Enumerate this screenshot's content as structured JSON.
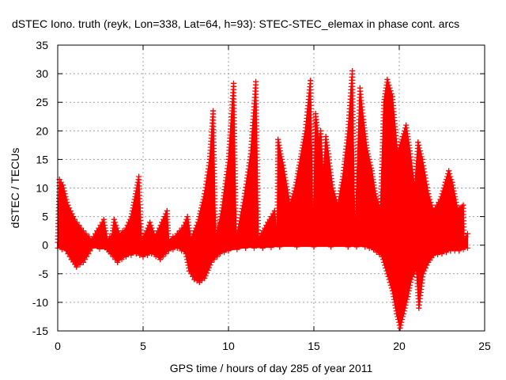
{
  "chart_data": {
    "type": "scatter",
    "title": "dSTEC Iono. truth (reyk, Lon=338, Lat=64, h=93): STEC-STEC_elemax in phase cont. arcs",
    "xlabel": "GPS time / hours of day 285 of year 2011",
    "ylabel": "dSTEC  / TECUs",
    "xlim": [
      0,
      25
    ],
    "ylim": [
      -15,
      35
    ],
    "xticks": [
      "0",
      "5",
      "10",
      "15",
      "20",
      "25"
    ],
    "yticks": [
      "-15",
      "-10",
      "-5",
      "0",
      "5",
      "10",
      "15",
      "20",
      "25",
      "30",
      "35"
    ],
    "grid": true,
    "marker": "+",
    "color": "#ff0000",
    "series": [
      {
        "upper_envelope": [
          [
            0,
            0.5
          ],
          [
            0.1,
            11.5
          ],
          [
            0.3,
            10.5
          ],
          [
            0.6,
            7
          ],
          [
            1.0,
            4.5
          ],
          [
            1.5,
            2.5
          ],
          [
            2.0,
            1
          ],
          [
            2.3,
            2.5
          ],
          [
            2.7,
            4.5
          ],
          [
            2.9,
            1
          ],
          [
            3.2,
            2
          ],
          [
            3.3,
            4.5
          ],
          [
            3.6,
            2
          ],
          [
            4.0,
            3
          ],
          [
            4.3,
            5
          ],
          [
            4.5,
            8
          ],
          [
            4.75,
            12
          ],
          [
            4.9,
            1
          ],
          [
            5.2,
            2.5
          ],
          [
            5.4,
            4
          ],
          [
            5.7,
            1.5
          ],
          [
            6.1,
            4
          ],
          [
            6.4,
            6
          ],
          [
            6.5,
            1
          ],
          [
            7.0,
            2
          ],
          [
            7.4,
            3.5
          ],
          [
            7.6,
            5
          ],
          [
            7.8,
            1
          ],
          [
            8.2,
            4
          ],
          [
            8.6,
            9
          ],
          [
            8.9,
            15
          ],
          [
            9.1,
            23.5
          ],
          [
            9.25,
            1
          ],
          [
            9.6,
            6
          ],
          [
            10.0,
            15
          ],
          [
            10.3,
            28.3
          ],
          [
            10.45,
            1
          ],
          [
            10.9,
            8
          ],
          [
            11.3,
            16
          ],
          [
            11.6,
            28.6
          ],
          [
            11.75,
            1
          ],
          [
            12.3,
            4
          ],
          [
            12.7,
            6
          ],
          [
            12.85,
            1
          ],
          [
            12.9,
            18.5
          ],
          [
            13.2,
            14
          ],
          [
            13.6,
            7
          ],
          [
            13.9,
            10
          ],
          [
            14.2,
            15
          ],
          [
            14.5,
            20
          ],
          [
            14.8,
            28.8
          ],
          [
            14.95,
            1
          ],
          [
            15.1,
            23
          ],
          [
            15.3,
            18
          ],
          [
            15.4,
            20
          ],
          [
            15.55,
            12
          ],
          [
            15.7,
            19
          ],
          [
            15.85,
            16
          ],
          [
            16.1,
            10
          ],
          [
            16.4,
            7
          ],
          [
            16.7,
            12
          ],
          [
            17.0,
            20
          ],
          [
            17.25,
            30.5
          ],
          [
            17.4,
            1
          ],
          [
            17.7,
            27.5
          ],
          [
            17.9,
            22
          ],
          [
            18.1,
            17
          ],
          [
            18.4,
            13
          ],
          [
            18.6,
            9
          ],
          [
            18.9,
            6
          ],
          [
            19.1,
            25
          ],
          [
            19.3,
            29
          ],
          [
            19.6,
            26
          ],
          [
            19.9,
            16
          ],
          [
            20.2,
            19
          ],
          [
            20.4,
            21
          ],
          [
            20.65,
            16
          ],
          [
            20.9,
            10
          ],
          [
            21.1,
            18
          ],
          [
            21.35,
            15
          ],
          [
            21.7,
            9
          ],
          [
            22.0,
            6
          ],
          [
            22.4,
            8
          ],
          [
            22.7,
            11
          ],
          [
            22.9,
            13
          ],
          [
            23.1,
            11
          ],
          [
            23.4,
            6.5
          ],
          [
            23.6,
            6.5
          ],
          [
            23.75,
            7
          ],
          [
            23.8,
            1
          ],
          [
            24.0,
            2
          ]
        ],
        "lower_envelope": [
          [
            0,
            -0.5
          ],
          [
            0.5,
            -1
          ],
          [
            0.8,
            -2.5
          ],
          [
            1.1,
            -3.8
          ],
          [
            1.5,
            -3
          ],
          [
            2.0,
            -0.5
          ],
          [
            2.9,
            -0.8
          ],
          [
            3.1,
            -1.5
          ],
          [
            3.5,
            -3
          ],
          [
            4.0,
            -2
          ],
          [
            4.6,
            -1.5
          ],
          [
            5.0,
            -2
          ],
          [
            5.5,
            -1.5
          ],
          [
            6.0,
            -2.5
          ],
          [
            6.5,
            -1
          ],
          [
            7.0,
            -0.5
          ],
          [
            7.5,
            -1.5
          ],
          [
            7.7,
            -4.5
          ],
          [
            8.0,
            -6
          ],
          [
            8.3,
            -6.5
          ],
          [
            8.6,
            -5.8
          ],
          [
            9.0,
            -3
          ],
          [
            9.5,
            -1.5
          ],
          [
            10.0,
            -1
          ],
          [
            11.0,
            -0.5
          ],
          [
            12.0,
            -0.5
          ],
          [
            13.0,
            -0.3
          ],
          [
            15.0,
            -0.3
          ],
          [
            17.0,
            -0.3
          ],
          [
            18.0,
            -0.3
          ],
          [
            18.5,
            -0.8
          ],
          [
            19.0,
            -2
          ],
          [
            19.3,
            -5
          ],
          [
            19.6,
            -8
          ],
          [
            19.85,
            -12
          ],
          [
            20.05,
            -14.5
          ],
          [
            20.25,
            -12
          ],
          [
            20.5,
            -9
          ],
          [
            20.7,
            -6
          ],
          [
            21.0,
            -4
          ],
          [
            21.15,
            -11
          ],
          [
            21.4,
            -5
          ],
          [
            21.7,
            -3
          ],
          [
            22.0,
            -1.8
          ],
          [
            22.5,
            -1.5
          ],
          [
            23.0,
            -1
          ],
          [
            23.5,
            -1
          ],
          [
            24.0,
            -0.5
          ]
        ]
      }
    ]
  }
}
